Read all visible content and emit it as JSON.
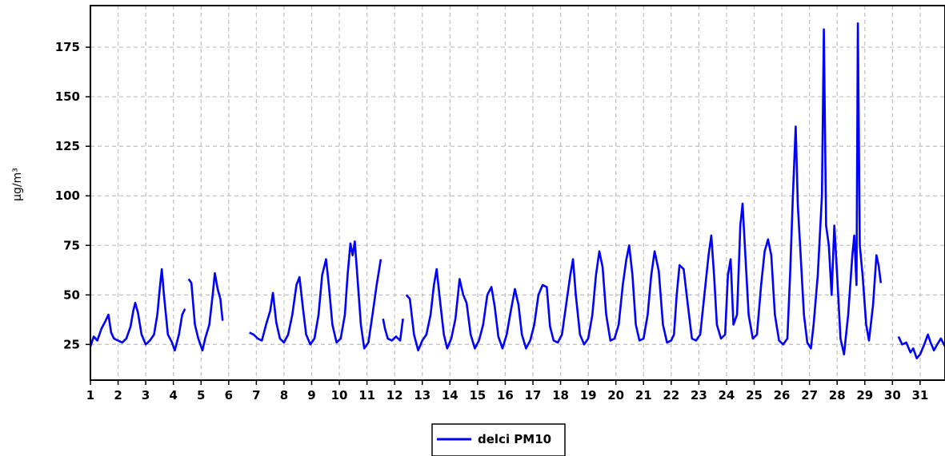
{
  "chart_data": {
    "type": "line",
    "title": "",
    "xlabel": "",
    "ylabel": "µg/m³",
    "xlim": [
      1,
      31.9
    ],
    "ylim": [
      7,
      196
    ],
    "x_ticks": [
      1,
      2,
      3,
      4,
      5,
      6,
      7,
      8,
      9,
      10,
      11,
      12,
      13,
      14,
      15,
      16,
      17,
      18,
      19,
      20,
      21,
      22,
      23,
      24,
      25,
      26,
      27,
      28,
      29,
      30,
      31
    ],
    "y_ticks": [
      25,
      50,
      75,
      100,
      125,
      150,
      175
    ],
    "grid": true,
    "legend_position": "bottom-center",
    "series": [
      {
        "name": "delci PM10",
        "color": "#0000ff",
        "segments": [
          [
            [
              1.0,
              24
            ],
            [
              1.12,
              29
            ],
            [
              1.25,
              27
            ],
            [
              1.4,
              33
            ],
            [
              1.55,
              37
            ],
            [
              1.65,
              40
            ],
            [
              1.75,
              31
            ],
            [
              1.85,
              28
            ],
            [
              2.0,
              27
            ],
            [
              2.15,
              26
            ],
            [
              2.3,
              28
            ],
            [
              2.45,
              34
            ],
            [
              2.55,
              42
            ],
            [
              2.62,
              46
            ],
            [
              2.72,
              41
            ],
            [
              2.85,
              30
            ],
            [
              3.0,
              25
            ],
            [
              3.15,
              27
            ],
            [
              3.3,
              30
            ],
            [
              3.42,
              40
            ],
            [
              3.52,
              55
            ],
            [
              3.58,
              63
            ],
            [
              3.66,
              50
            ],
            [
              3.8,
              30
            ],
            [
              3.95,
              26
            ],
            [
              4.05,
              22
            ],
            [
              4.2,
              30
            ],
            [
              4.32,
              40
            ],
            [
              4.42,
              43
            ]
          ],
          [
            [
              4.55,
              58
            ],
            [
              4.65,
              56
            ],
            [
              4.78,
              35
            ],
            [
              4.9,
              28
            ],
            [
              5.05,
              22
            ],
            [
              5.15,
              28
            ],
            [
              5.3,
              35
            ],
            [
              5.42,
              50
            ],
            [
              5.5,
              61
            ],
            [
              5.6,
              53
            ],
            [
              5.7,
              48
            ],
            [
              5.78,
              37
            ]
          ],
          [
            [
              6.75,
              31
            ],
            [
              6.9,
              30
            ],
            [
              7.05,
              28
            ],
            [
              7.2,
              27
            ],
            [
              7.35,
              35
            ],
            [
              7.5,
              42
            ],
            [
              7.6,
              51
            ],
            [
              7.72,
              36
            ],
            [
              7.85,
              28
            ],
            [
              8.0,
              26
            ],
            [
              8.15,
              30
            ],
            [
              8.3,
              40
            ],
            [
              8.45,
              55
            ],
            [
              8.56,
              59
            ],
            [
              8.68,
              44
            ],
            [
              8.8,
              30
            ],
            [
              8.95,
              25
            ],
            [
              9.1,
              28
            ],
            [
              9.25,
              40
            ],
            [
              9.38,
              60
            ],
            [
              9.52,
              68
            ],
            [
              9.62,
              55
            ],
            [
              9.75,
              35
            ],
            [
              9.9,
              26
            ],
            [
              10.05,
              28
            ],
            [
              10.2,
              40
            ],
            [
              10.3,
              60
            ],
            [
              10.4,
              76
            ],
            [
              10.48,
              70
            ],
            [
              10.56,
              77
            ],
            [
              10.65,
              60
            ],
            [
              10.78,
              35
            ],
            [
              10.9,
              23
            ],
            [
              11.05,
              26
            ],
            [
              11.2,
              40
            ],
            [
              11.35,
              55
            ],
            [
              11.5,
              68
            ]
          ],
          [
            [
              11.58,
              38
            ],
            [
              11.65,
              33
            ],
            [
              11.75,
              28
            ],
            [
              11.9,
              27
            ],
            [
              12.05,
              29
            ],
            [
              12.2,
              27
            ],
            [
              12.3,
              38
            ]
          ],
          [
            [
              12.42,
              50
            ],
            [
              12.55,
              48
            ],
            [
              12.7,
              30
            ],
            [
              12.85,
              22
            ],
            [
              13.0,
              27
            ],
            [
              13.15,
              30
            ],
            [
              13.3,
              40
            ],
            [
              13.42,
              55
            ],
            [
              13.52,
              63
            ],
            [
              13.65,
              46
            ],
            [
              13.78,
              30
            ],
            [
              13.9,
              23
            ],
            [
              14.05,
              28
            ],
            [
              14.2,
              38
            ],
            [
              14.35,
              58
            ],
            [
              14.48,
              50
            ],
            [
              14.6,
              46
            ],
            [
              14.75,
              30
            ],
            [
              14.9,
              23
            ],
            [
              15.05,
              27
            ],
            [
              15.2,
              35
            ],
            [
              15.35,
              50
            ],
            [
              15.5,
              54
            ],
            [
              15.62,
              44
            ],
            [
              15.75,
              29
            ],
            [
              15.9,
              23
            ],
            [
              16.05,
              30
            ],
            [
              16.2,
              42
            ],
            [
              16.35,
              53
            ],
            [
              16.48,
              45
            ],
            [
              16.6,
              30
            ],
            [
              16.75,
              23
            ],
            [
              16.9,
              27
            ],
            [
              17.05,
              35
            ],
            [
              17.2,
              50
            ],
            [
              17.35,
              55
            ],
            [
              17.5,
              54
            ],
            [
              17.62,
              34
            ],
            [
              17.75,
              27
            ],
            [
              17.9,
              26
            ],
            [
              18.05,
              30
            ],
            [
              18.2,
              45
            ],
            [
              18.35,
              60
            ],
            [
              18.45,
              68
            ],
            [
              18.55,
              50
            ],
            [
              18.7,
              30
            ],
            [
              18.85,
              25
            ],
            [
              19.0,
              28
            ],
            [
              19.15,
              40
            ],
            [
              19.28,
              60
            ],
            [
              19.4,
              72
            ],
            [
              19.52,
              64
            ],
            [
              19.65,
              40
            ],
            [
              19.8,
              27
            ],
            [
              19.95,
              28
            ],
            [
              20.1,
              35
            ],
            [
              20.25,
              55
            ],
            [
              20.38,
              68
            ],
            [
              20.48,
              75
            ],
            [
              20.6,
              60
            ],
            [
              20.72,
              35
            ],
            [
              20.85,
              27
            ],
            [
              21.0,
              28
            ],
            [
              21.15,
              40
            ],
            [
              21.28,
              60
            ],
            [
              21.4,
              72
            ],
            [
              21.55,
              62
            ],
            [
              21.7,
              35
            ],
            [
              21.85,
              26
            ],
            [
              22.0,
              27
            ],
            [
              22.1,
              30
            ],
            [
              22.2,
              50
            ],
            [
              22.3,
              65
            ],
            [
              22.45,
              63
            ],
            [
              22.6,
              45
            ],
            [
              22.75,
              28
            ],
            [
              22.9,
              27
            ],
            [
              23.05,
              30
            ],
            [
              23.2,
              50
            ],
            [
              23.35,
              70
            ],
            [
              23.45,
              80
            ],
            [
              23.55,
              60
            ],
            [
              23.65,
              35
            ],
            [
              23.8,
              28
            ],
            [
              23.95,
              30
            ],
            [
              24.05,
              60
            ],
            [
              24.15,
              68
            ],
            [
              24.25,
              35
            ],
            [
              24.38,
              40
            ],
            [
              24.5,
              85
            ],
            [
              24.58,
              96
            ],
            [
              24.68,
              70
            ],
            [
              24.8,
              40
            ],
            [
              24.95,
              28
            ],
            [
              25.1,
              30
            ],
            [
              25.25,
              55
            ],
            [
              25.38,
              72
            ],
            [
              25.5,
              78
            ],
            [
              25.62,
              70
            ],
            [
              25.75,
              40
            ],
            [
              25.9,
              27
            ],
            [
              26.05,
              25
            ],
            [
              26.2,
              28
            ],
            [
              26.3,
              60
            ],
            [
              26.4,
              100
            ],
            [
              26.5,
              135
            ],
            [
              26.58,
              95
            ],
            [
              26.68,
              70
            ],
            [
              26.8,
              40
            ],
            [
              26.92,
              26
            ],
            [
              27.05,
              23
            ],
            [
              27.15,
              35
            ],
            [
              27.3,
              60
            ],
            [
              27.45,
              100
            ],
            [
              27.52,
              184
            ],
            [
              27.6,
              85
            ],
            [
              27.7,
              75
            ],
            [
              27.8,
              50
            ],
            [
              27.9,
              85
            ],
            [
              28.0,
              60
            ],
            [
              28.12,
              28
            ],
            [
              28.25,
              20
            ],
            [
              28.4,
              40
            ],
            [
              28.55,
              70
            ],
            [
              28.62,
              80
            ],
            [
              28.7,
              55
            ],
            [
              28.75,
              187
            ],
            [
              28.82,
              75
            ],
            [
              28.92,
              60
            ],
            [
              29.05,
              35
            ],
            [
              29.15,
              27
            ],
            [
              29.3,
              45
            ],
            [
              29.42,
              70
            ],
            [
              29.5,
              65
            ],
            [
              29.58,
              56
            ]
          ],
          [
            [
              30.22,
              29
            ],
            [
              30.35,
              25
            ],
            [
              30.5,
              26
            ],
            [
              30.65,
              21
            ],
            [
              30.75,
              23
            ],
            [
              30.88,
              18
            ],
            [
              31.0,
              20
            ],
            [
              31.15,
              25
            ],
            [
              31.28,
              30
            ],
            [
              31.38,
              26
            ],
            [
              31.5,
              22
            ],
            [
              31.62,
              25
            ],
            [
              31.75,
              28
            ],
            [
              31.9,
              24
            ]
          ]
        ]
      }
    ]
  }
}
